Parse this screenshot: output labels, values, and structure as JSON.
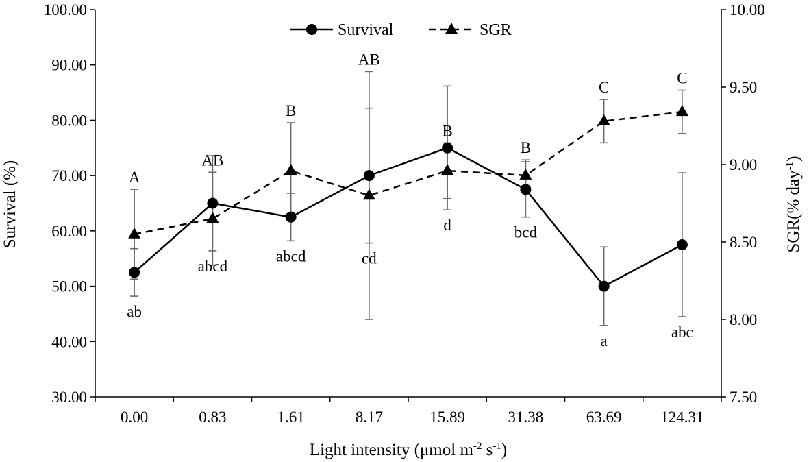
{
  "chart_data": {
    "type": "line",
    "title": "",
    "xlabel": "Light intensity (μmol m-2 s-1)",
    "xlabel_parts": {
      "main": "Light intensity (μmol m",
      "sup1": "-2",
      "mid": " s",
      "sup2": "-1",
      "end": ")"
    },
    "ylabel_left": "Survival (%)",
    "ylabel_right": "SGR(% day-1)",
    "ylabel_right_parts": {
      "main": "SGR(% day",
      "sup": "-1",
      "end": ")"
    },
    "categories": [
      "0.00",
      "0.83",
      "1.61",
      "8.17",
      "15.89",
      "31.38",
      "63.69",
      "124.31"
    ],
    "y_left": {
      "min": 30,
      "max": 100,
      "step": 10,
      "tick_labels": [
        "30.00",
        "40.00",
        "50.00",
        "60.00",
        "70.00",
        "80.00",
        "90.00",
        "100.00"
      ]
    },
    "y_right": {
      "min": 7.5,
      "max": 10,
      "step": 0.5,
      "tick_labels": [
        "7.50",
        "8.00",
        "8.50",
        "9.00",
        "9.50",
        "10.00"
      ]
    },
    "legend_position": "top-center",
    "series": [
      {
        "name": "Survival",
        "axis": "left",
        "line": "solid",
        "marker": "circle",
        "values": [
          52.5,
          65.0,
          62.5,
          70.0,
          75.0,
          67.5,
          50.0,
          57.5
        ],
        "errors": [
          4.3,
          8.6,
          4.3,
          12.2,
          11.2,
          5.0,
          7.1,
          13.0
        ],
        "labels": [
          "ab",
          "abcd",
          "abcd",
          "cd",
          "d",
          "bcd",
          "a",
          "abc"
        ],
        "label_position": "below"
      },
      {
        "name": "SGR",
        "axis": "right",
        "line": "dashed",
        "marker": "triangle",
        "values": [
          8.55,
          8.65,
          8.96,
          8.8,
          8.96,
          8.93,
          9.28,
          9.34
        ],
        "errors": [
          0.29,
          0.3,
          0.31,
          0.8,
          0.18,
          0.1,
          0.14,
          0.14
        ],
        "labels": [
          "A",
          "AB",
          "B",
          "AB",
          "B",
          "B",
          "C",
          "C"
        ],
        "label_position": "above"
      }
    ]
  }
}
